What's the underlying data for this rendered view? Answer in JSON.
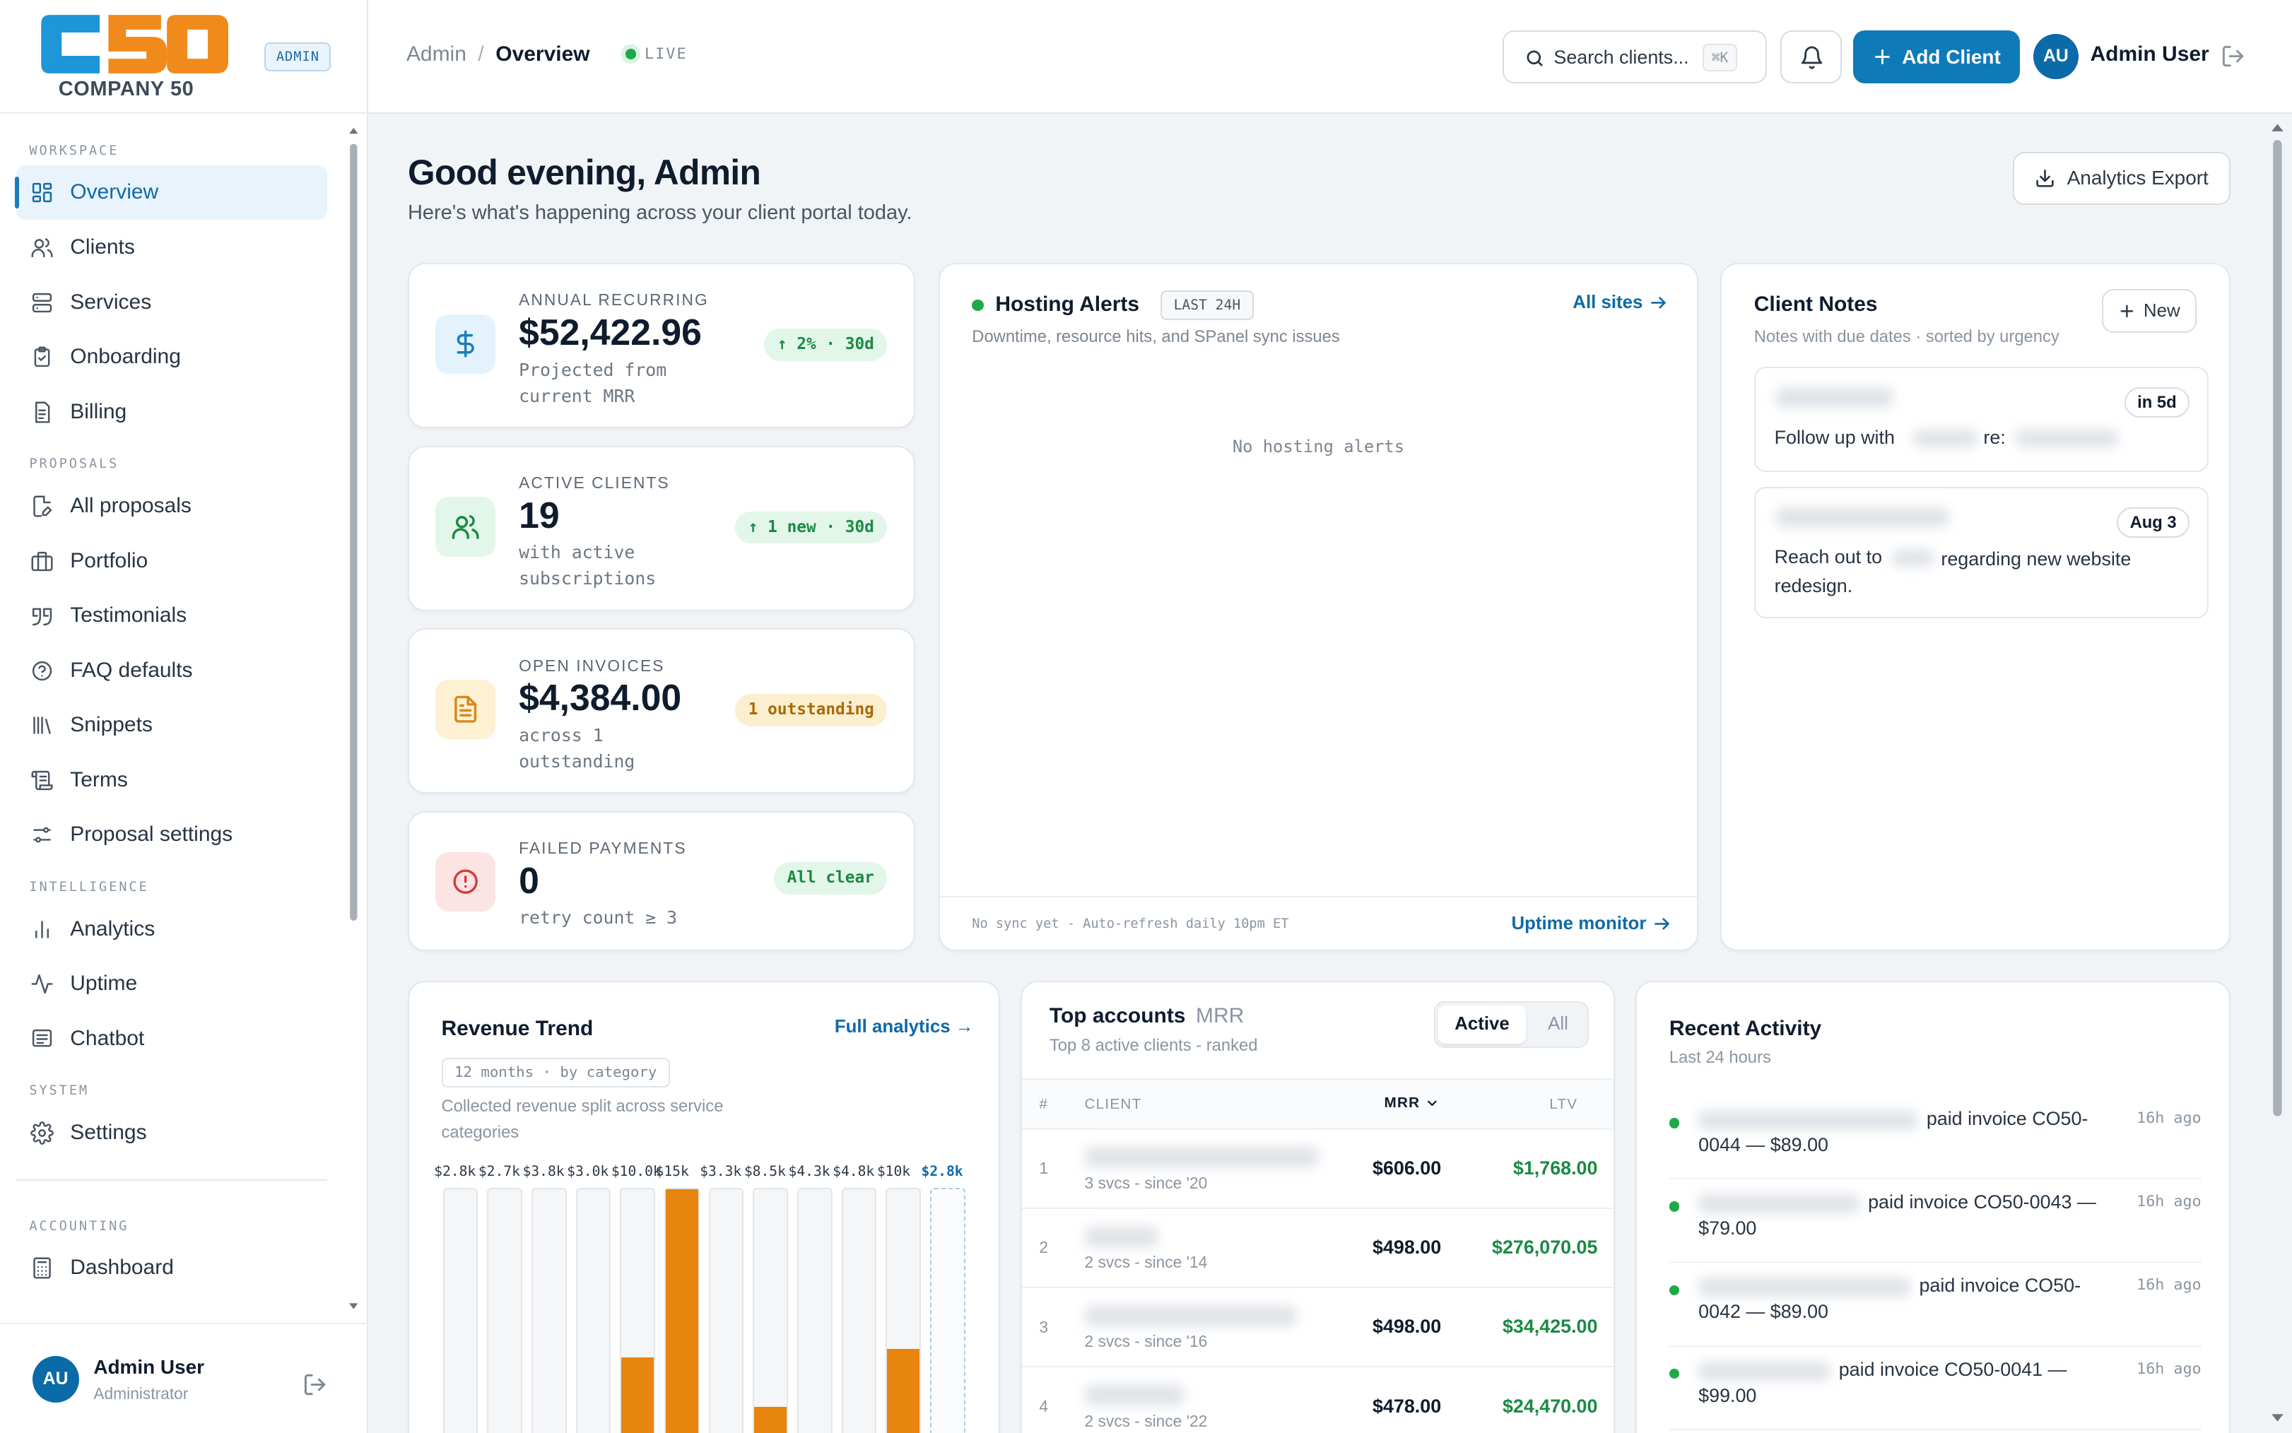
{
  "brand": {
    "logo_text": "COMPANY 50",
    "badge": "ADMIN"
  },
  "sidebar": {
    "sections": [
      {
        "title": "WORKSPACE",
        "items": [
          {
            "label": "Overview",
            "icon": "grid-icon",
            "active": true
          },
          {
            "label": "Clients",
            "icon": "users-icon"
          },
          {
            "label": "Services",
            "icon": "server-icon"
          },
          {
            "label": "Onboarding",
            "icon": "clipboard-icon"
          },
          {
            "label": "Billing",
            "icon": "receipt-icon"
          }
        ]
      },
      {
        "title": "PROPOSALS",
        "items": [
          {
            "label": "All proposals",
            "icon": "file-edit-icon"
          },
          {
            "label": "Portfolio",
            "icon": "briefcase-icon"
          },
          {
            "label": "Testimonials",
            "icon": "quote-icon"
          },
          {
            "label": "FAQ defaults",
            "icon": "help-circle-icon"
          },
          {
            "label": "Snippets",
            "icon": "library-icon"
          },
          {
            "label": "Terms",
            "icon": "scroll-icon"
          },
          {
            "label": "Proposal settings",
            "icon": "sliders-icon"
          }
        ]
      },
      {
        "title": "INTELLIGENCE",
        "items": [
          {
            "label": "Analytics",
            "icon": "bar-chart-icon"
          },
          {
            "label": "Uptime",
            "icon": "activity-icon"
          },
          {
            "label": "Chatbot",
            "icon": "message-icon"
          }
        ]
      },
      {
        "title": "SYSTEM",
        "items": [
          {
            "label": "Settings",
            "icon": "gear-icon"
          }
        ]
      },
      {
        "title": "ACCOUNTING",
        "items": [
          {
            "label": "Dashboard",
            "icon": "calculator-icon"
          }
        ]
      }
    ],
    "user": {
      "initials": "AU",
      "name": "Admin User",
      "role": "Administrator"
    }
  },
  "topbar": {
    "breadcrumb_parent": "Admin",
    "breadcrumb_sep": "/",
    "breadcrumb_current": "Overview",
    "live": "LIVE",
    "search_placeholder": "Search clients...",
    "search_shortcut": "⌘K",
    "add_client": "Add Client",
    "user_initials": "AU",
    "user_name": "Admin User"
  },
  "header": {
    "greeting": "Good evening, Admin",
    "subtitle": "Here's what's happening across your client portal today.",
    "export": "Analytics Export"
  },
  "kpis": [
    {
      "label": "ANNUAL RECURRING",
      "value": "$52,422.96",
      "sub": "Projected from current MRR",
      "badge": "↑ 2% · 30d",
      "tone": "green",
      "icon": "dollar-icon"
    },
    {
      "label": "ACTIVE CLIENTS",
      "value": "19",
      "sub": "with active subscriptions",
      "badge": "↑ 1 new · 30d",
      "tone": "green",
      "icon": "users-icon"
    },
    {
      "label": "OPEN INVOICES",
      "value": "$4,384.00",
      "sub": "across 1 outstanding",
      "badge": "1 outstanding",
      "tone": "amber",
      "icon": "file-text-icon"
    },
    {
      "label": "FAILED PAYMENTS",
      "value": "0",
      "sub": "retry count ≥ 3",
      "badge": "All clear",
      "tone": "green",
      "icon": "alert-circle-icon"
    }
  ],
  "hosting": {
    "title": "Hosting Alerts",
    "badge": "LAST 24H",
    "link": "All sites",
    "subtitle": "Downtime, resource hits, and SPanel sync issues",
    "empty": "No hosting alerts",
    "footer": "No sync yet - Auto-refresh daily 10pm ET",
    "footer_link": "Uptime monitor"
  },
  "notes": {
    "title": "Client Notes",
    "new_label": "New",
    "subtitle": "Notes with due dates · sorted by urgency",
    "items": [
      {
        "due": "in 5d",
        "text_a": "Follow up with",
        "text_b": "re:"
      },
      {
        "due": "Aug 3",
        "text_a": "Reach out to",
        "text_b": "regarding new website redesign."
      }
    ]
  },
  "revenue": {
    "title": "Revenue Trend",
    "link": "Full analytics →",
    "chip": "12 months · by category",
    "subtitle": "Collected revenue split across service categories"
  },
  "chart_data": {
    "type": "bar",
    "title": "Revenue Trend",
    "labels": [
      "$2.8k",
      "$2.7k",
      "$3.8k",
      "$3.0k",
      "$10.0k",
      "$15k",
      "$3.3k",
      "$8.5k",
      "$4.3k",
      "$4.8k",
      "$10k",
      "$2.8k"
    ],
    "values": [
      2.8,
      2.7,
      3.8,
      3.0,
      10.0,
      15,
      3.3,
      8.5,
      4.3,
      4.8,
      10,
      2.8
    ],
    "highlight_fraction": [
      0,
      0,
      0,
      0,
      0.42,
      1,
      0,
      0.25,
      0,
      0,
      0.45,
      0
    ]
  },
  "accounts": {
    "title": "Top accounts",
    "title_suffix": "MRR",
    "subtitle": "Top 8 active clients - ranked",
    "tab_active": "Active",
    "tab_all": "All",
    "columns": {
      "rank": "#",
      "client": "CLIENT",
      "mrr": "MRR",
      "ltv": "LTV"
    },
    "rows": [
      {
        "rank": "1",
        "meta": "3 svcs - since '20",
        "mrr": "$606.00",
        "ltv": "$1,768.00"
      },
      {
        "rank": "2",
        "meta": "2 svcs - since '14",
        "mrr": "$498.00",
        "ltv": "$276,070.05"
      },
      {
        "rank": "3",
        "meta": "2 svcs - since '16",
        "mrr": "$498.00",
        "ltv": "$34,425.00"
      },
      {
        "rank": "4",
        "meta": "2 svcs - since '22",
        "mrr": "$478.00",
        "ltv": "$24,470.00"
      }
    ]
  },
  "activity": {
    "title": "Recent Activity",
    "subtitle": "Last 24 hours",
    "items": [
      {
        "line1": "paid invoice CO50-",
        "line2": "0044 — $89.00",
        "time": "16h ago"
      },
      {
        "line1": "paid invoice CO50-0043 —",
        "line2": "$79.00",
        "time": "16h ago"
      },
      {
        "line1": "paid invoice CO50-",
        "line2": "0042 — $89.00",
        "time": "16h ago"
      },
      {
        "line1": "paid invoice CO50-0041 —",
        "line2": "$99.00",
        "time": "16h ago"
      }
    ]
  },
  "colors": {
    "accent": "#0f7ab8",
    "green": "#1b8a43",
    "amber": "#b9760a",
    "bar": "#e8850f",
    "danger": "#d93a3a"
  }
}
